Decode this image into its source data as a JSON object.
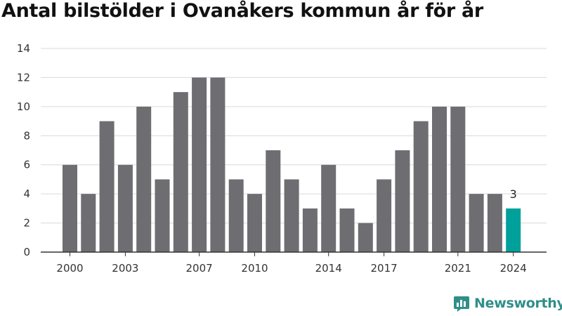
{
  "chart_data": {
    "type": "bar",
    "title": "Antal bilstölder i Ovanåkers kommun år för år",
    "categories": [
      "2000",
      "2001",
      "2002",
      "2003",
      "2004",
      "2005",
      "2006",
      "2007",
      "2008",
      "2009",
      "2010",
      "2011",
      "2012",
      "2013",
      "2014",
      "2015",
      "2016",
      "2017",
      "2018",
      "2019",
      "2020",
      "2021",
      "2022",
      "2023",
      "2024"
    ],
    "values": [
      6,
      4,
      9,
      6,
      10,
      5,
      11,
      12,
      12,
      5,
      4,
      7,
      5,
      3,
      6,
      3,
      2,
      5,
      7,
      9,
      10,
      10,
      4,
      4,
      3
    ],
    "x_tick_labels": [
      "2000",
      "2003",
      "2007",
      "2010",
      "2014",
      "2017",
      "2021",
      "2024"
    ],
    "y_ticks": [
      "0",
      "2",
      "4",
      "6",
      "8",
      "10",
      "12",
      "14"
    ],
    "ylim": [
      0,
      14
    ],
    "grid": true,
    "highlight": {
      "category": "2024",
      "label": "3"
    },
    "colors": {
      "bar": "#6d6d72",
      "highlight": "#00a19a",
      "grid": "#d9d9d9",
      "axis": "#333333"
    }
  },
  "brand": {
    "name": "Newsworthy",
    "icon": "newsworthy-logo-icon"
  }
}
